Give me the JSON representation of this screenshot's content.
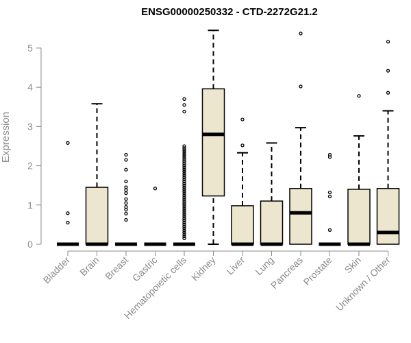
{
  "chart_data": {
    "type": "box",
    "title": "ENSG00000250332 - CTD-2272G21.2",
    "xlabel": "",
    "ylabel": "Expression",
    "ylim": [
      0,
      5.5
    ],
    "yticks": [
      0,
      1,
      2,
      3,
      4,
      5
    ],
    "grid": false,
    "colors": {
      "box_fill": "#ede6cf",
      "box_stroke": "#000000",
      "axis": "#8a8a8a"
    },
    "categories": [
      "Bladder",
      "Brain",
      "Breast",
      "Gastric",
      "Hematopoietic cells",
      "Kidney",
      "Liver",
      "Lung",
      "Pancreas",
      "Prostate",
      "Skin",
      "Unknown / Other"
    ],
    "boxes": [
      {
        "q1": 0,
        "median": 0,
        "q3": 0,
        "whisker_low": 0,
        "whisker_high": 0,
        "outliers": [
          2.58,
          0.79,
          0.55
        ]
      },
      {
        "q1": 0,
        "median": 0,
        "q3": 1.45,
        "whisker_low": 0,
        "whisker_high": 3.58,
        "outliers": []
      },
      {
        "q1": 0,
        "median": 0,
        "q3": 0,
        "whisker_low": 0,
        "whisker_high": 0,
        "outliers": [
          2.28,
          2.15,
          1.9,
          1.6,
          1.45,
          1.38,
          1.3,
          1.15,
          1.05,
          0.95,
          0.88,
          0.78,
          0.62
        ]
      },
      {
        "q1": 0,
        "median": 0,
        "q3": 0,
        "whisker_low": 0,
        "whisker_high": 0,
        "outliers": [
          1.42
        ]
      },
      {
        "q1": 0,
        "median": 0,
        "q3": 0,
        "whisker_low": 0,
        "whisker_high": 0,
        "outliers": [
          3.7,
          3.55,
          3.38,
          2.5,
          2.45,
          2.4,
          2.35,
          2.3,
          2.25,
          2.2,
          2.15,
          2.1,
          2.05,
          2.0,
          1.95,
          1.9,
          1.85,
          1.8,
          1.75,
          1.7,
          1.65,
          1.6,
          1.55,
          1.5,
          1.45,
          1.4,
          1.35,
          1.3,
          1.25,
          1.2,
          1.15,
          1.1,
          1.05,
          1.0,
          0.95,
          0.9,
          0.85,
          0.8,
          0.75,
          0.7,
          0.65,
          0.6,
          0.55,
          0.5,
          0.45,
          0.4,
          0.35,
          0.3,
          0.25,
          0.2,
          0.15
        ]
      },
      {
        "q1": 1.23,
        "median": 2.8,
        "q3": 3.96,
        "whisker_low": 0,
        "whisker_high": 5.45,
        "outliers": []
      },
      {
        "q1": 0,
        "median": 0,
        "q3": 0.98,
        "whisker_low": 0,
        "whisker_high": 2.33,
        "outliers": [
          3.18,
          2.52
        ]
      },
      {
        "q1": 0,
        "median": 0,
        "q3": 1.1,
        "whisker_low": 0,
        "whisker_high": 2.58,
        "outliers": []
      },
      {
        "q1": 0,
        "median": 0.8,
        "q3": 1.42,
        "whisker_low": 0,
        "whisker_high": 2.97,
        "outliers": [
          5.37,
          4.02
        ]
      },
      {
        "q1": 0,
        "median": 0,
        "q3": 0,
        "whisker_low": 0,
        "whisker_high": 0,
        "outliers": [
          2.28,
          2.22,
          1.32,
          1.22,
          0.36
        ]
      },
      {
        "q1": 0,
        "median": 0,
        "q3": 1.4,
        "whisker_low": 0,
        "whisker_high": 2.76,
        "outliers": [
          3.78
        ]
      },
      {
        "q1": 0,
        "median": 0.3,
        "q3": 1.42,
        "whisker_low": 0,
        "whisker_high": 3.4,
        "outliers": [
          5.16,
          4.42,
          3.86
        ]
      }
    ]
  }
}
